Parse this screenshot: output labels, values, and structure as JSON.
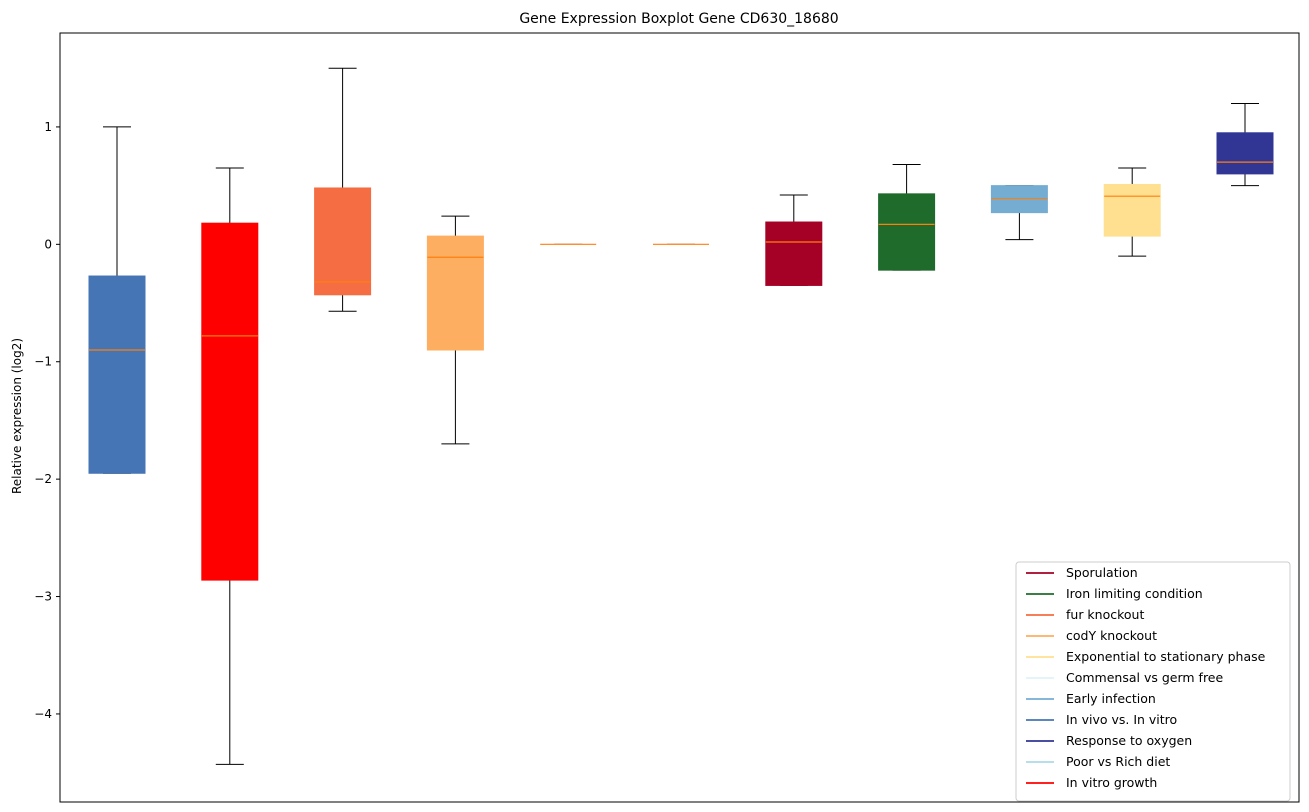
{
  "chart_data": {
    "type": "box",
    "title": "Gene Expression Boxplot Gene CD630_18680",
    "xlabel": "",
    "ylabel": "Relative expression (log2)",
    "ylim": [
      -4.75,
      1.8
    ],
    "yticks": [
      1,
      0,
      -1,
      -2,
      -3,
      -4
    ],
    "ytick_labels": [
      "1",
      "0",
      "−1",
      "−2",
      "−3",
      "−4"
    ],
    "grid": false,
    "legend_position": "lower right",
    "boxes": [
      {
        "color": "#4575b4",
        "whisker_low": -1.95,
        "q1": -1.95,
        "median": -0.9,
        "q3": -0.27,
        "whisker_high": 1.0
      },
      {
        "color": "#ff0000",
        "whisker_low": -4.43,
        "q1": -2.86,
        "median": -0.78,
        "q3": 0.18,
        "whisker_high": 0.65
      },
      {
        "color": "#f46d43",
        "whisker_low": -0.57,
        "q1": -0.43,
        "median": -0.32,
        "q3": 0.48,
        "whisker_high": 1.5
      },
      {
        "color": "#fdae61",
        "whisker_low": -1.7,
        "q1": -0.9,
        "median": -0.11,
        "q3": 0.07,
        "whisker_high": 0.24
      },
      {
        "color": "#ffffff",
        "whisker_low": 0.0,
        "q1": 0.0,
        "median": 0.0,
        "q3": 0.0,
        "whisker_high": 0.0
      },
      {
        "color": "#ffffff",
        "whisker_low": 0.0,
        "q1": 0.0,
        "median": 0.0,
        "q3": 0.0,
        "whisker_high": 0.0
      },
      {
        "color": "#a50026",
        "whisker_low": -0.35,
        "q1": -0.35,
        "median": 0.02,
        "q3": 0.19,
        "whisker_high": 0.42
      },
      {
        "color": "#1f6b2c",
        "whisker_low": -0.22,
        "q1": -0.22,
        "median": 0.17,
        "q3": 0.43,
        "whisker_high": 0.68
      },
      {
        "color": "#74add1",
        "whisker_low": 0.04,
        "q1": 0.27,
        "median": 0.39,
        "q3": 0.5,
        "whisker_high": 0.5
      },
      {
        "color": "#fee090",
        "whisker_low": -0.1,
        "q1": 0.07,
        "median": 0.41,
        "q3": 0.51,
        "whisker_high": 0.65
      },
      {
        "color": "#313695",
        "whisker_low": 0.5,
        "q1": 0.6,
        "median": 0.7,
        "q3": 0.95,
        "whisker_high": 1.2
      }
    ],
    "median_color": "#ff7f0e",
    "legend": [
      {
        "name": "Sporulation",
        "color": "#a50026"
      },
      {
        "name": "Iron limiting condition",
        "color": "#1f6b2c"
      },
      {
        "name": "fur knockout",
        "color": "#f46d43"
      },
      {
        "name": "codY knockout",
        "color": "#fdae61"
      },
      {
        "name": "Exponential to stationary phase",
        "color": "#fee090"
      },
      {
        "name": "Commensal vs germ free",
        "color": "#e0f3f8"
      },
      {
        "name": "Early infection",
        "color": "#74add1"
      },
      {
        "name": "In vivo vs. In vitro",
        "color": "#4575b4"
      },
      {
        "name": "Response to oxygen",
        "color": "#313695"
      },
      {
        "name": "Poor vs Rich diet",
        "color": "#abd9e9"
      },
      {
        "name": "In vitro growth",
        "color": "#ff0000"
      }
    ]
  }
}
